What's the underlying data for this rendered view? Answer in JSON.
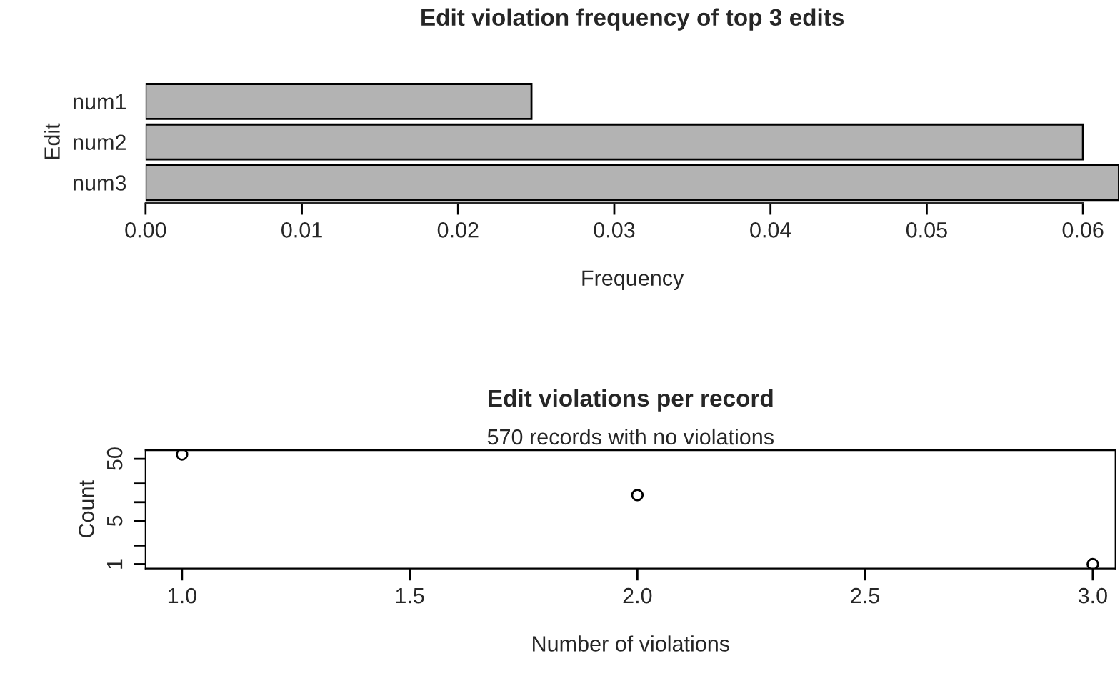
{
  "chart_data": [
    {
      "type": "bar",
      "orientation": "horizontal",
      "title": "Edit violation frequency of top 3 edits",
      "xlabel": "Frequency",
      "ylabel": "Edit",
      "categories": [
        "num1",
        "num2",
        "num3"
      ],
      "values": [
        0.0247,
        0.06,
        0.0623
      ],
      "color": "#b3b3b3",
      "xlim": [
        0,
        0.0623
      ],
      "xticks": [
        {
          "value": 0,
          "label": "0.00"
        },
        {
          "value": 0.01,
          "label": "0.01"
        },
        {
          "value": 0.02,
          "label": "0.02"
        },
        {
          "value": 0.03,
          "label": "0.03"
        },
        {
          "value": 0.04,
          "label": "0.04"
        },
        {
          "value": 0.05,
          "label": "0.05"
        },
        {
          "value": 0.06,
          "label": "0.06"
        }
      ],
      "grid": false,
      "legend": false
    },
    {
      "type": "scatter",
      "title": "Edit violations per record",
      "subtitle": "570 records with no violations",
      "xlabel": "Number of violations",
      "ylabel": "Count",
      "x": [
        1,
        2,
        3
      ],
      "values": [
        59,
        13,
        1
      ],
      "color": "#000000",
      "marker": "circle",
      "log": "y",
      "xlim": [
        0.92,
        3.05
      ],
      "ylim": [
        0.85,
        69
      ],
      "xticks": [
        {
          "value": 1,
          "label": "1.0"
        },
        {
          "value": 1.5,
          "label": "1.5"
        },
        {
          "value": 2,
          "label": "2.0"
        },
        {
          "value": 2.5,
          "label": "2.5"
        },
        {
          "value": 3,
          "label": "3.0"
        }
      ],
      "yticks": [
        1,
        {
          "value": 2,
          "label": null
        },
        5,
        {
          "value": 10,
          "label": null
        },
        {
          "value": 20,
          "label": null
        },
        50
      ],
      "grid": false,
      "legend": false
    }
  ]
}
